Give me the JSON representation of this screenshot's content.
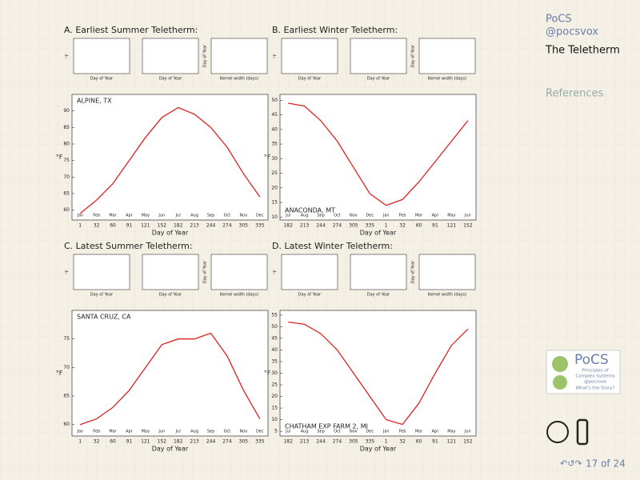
{
  "sidebar": {
    "header": "PoCS",
    "handle": "@pocsvox",
    "section": "The Teletherm",
    "references": "References",
    "page": "17 of 24",
    "logo": {
      "title": "PoCS",
      "lines": [
        "Principles of",
        "Complex Systems",
        "@pocsvox",
        "What's the Story?"
      ]
    }
  },
  "chart_data": [
    {
      "type": "line",
      "title": "A. Earliest Summer Teletherm:",
      "location": "ALPINE, TX",
      "xlabel": "Day of Year",
      "ylabel": "°F",
      "color": "#e02020",
      "categories": [
        "1",
        "32",
        "60",
        "91",
        "121",
        "152",
        "182",
        "213",
        "244",
        "274",
        "305",
        "335"
      ],
      "months": [
        "Jan",
        "Feb",
        "Mar",
        "Apr",
        "May",
        "Jun",
        "Jul",
        "Aug",
        "Sep",
        "Oct",
        "Nov",
        "Dec"
      ],
      "values": [
        59,
        63,
        68,
        75,
        82,
        88,
        91,
        89,
        85,
        79,
        71,
        64
      ],
      "ylim": [
        57,
        95
      ],
      "yticks": [
        60,
        65,
        70,
        75,
        80,
        85,
        90
      ],
      "insets": [
        {
          "xlabel": "Day of Year",
          "ylabel": "°F"
        },
        {
          "xlabel": "Day of Year"
        },
        {
          "xlabel": "Kernel width (days)",
          "ylabel": "Day of Year"
        }
      ]
    },
    {
      "type": "line",
      "title": "B. Earliest Winter Teletherm:",
      "location": "ANACONDA, MT",
      "xlabel": "Day of Year",
      "ylabel": "°F",
      "color": "#e02020",
      "categories": [
        "182",
        "213",
        "244",
        "274",
        "305",
        "335",
        "1",
        "32",
        "60",
        "91",
        "121",
        "152"
      ],
      "months": [
        "Jul",
        "Aug",
        "Sep",
        "Oct",
        "Nov",
        "Dec",
        "Jan",
        "Feb",
        "Mar",
        "Apr",
        "May",
        "Jun"
      ],
      "values": [
        49,
        48,
        43,
        36,
        27,
        18,
        14,
        16,
        22,
        29,
        36,
        43
      ],
      "ylim": [
        9,
        52
      ],
      "yticks": [
        10,
        15,
        20,
        25,
        30,
        35,
        40,
        45,
        50
      ],
      "insets": [
        {
          "xlabel": "Day of Year",
          "ylabel": "°F"
        },
        {
          "xlabel": "Day of Year"
        },
        {
          "xlabel": "Kernel width (days)",
          "ylabel": "Day of Year"
        }
      ]
    },
    {
      "type": "line",
      "title": "C. Latest Summer Teletherm:",
      "location": "SANTA CRUZ, CA",
      "xlabel": "Day of Year",
      "ylabel": "°F",
      "color": "#e02020",
      "categories": [
        "1",
        "32",
        "60",
        "91",
        "121",
        "152",
        "182",
        "213",
        "244",
        "274",
        "305",
        "335"
      ],
      "months": [
        "Jan",
        "Feb",
        "Mar",
        "Apr",
        "May",
        "Jun",
        "Jul",
        "Aug",
        "Sep",
        "Oct",
        "Nov",
        "Dec"
      ],
      "values": [
        60,
        61,
        63,
        66,
        70,
        74,
        75,
        75,
        76,
        72,
        66,
        61
      ],
      "ylim": [
        58,
        80
      ],
      "yticks": [
        60,
        65,
        70,
        75
      ],
      "insets": [
        {
          "xlabel": "Day of Year",
          "ylabel": "°F"
        },
        {
          "xlabel": "Day of Year"
        },
        {
          "xlabel": "Kernel width (days)",
          "ylabel": "Day of Year"
        }
      ]
    },
    {
      "type": "line",
      "title": "D. Latest Winter Teletherm:",
      "location": "CHATHAM EXP FARM 2, MI",
      "xlabel": "Day of Year",
      "ylabel": "°F",
      "color": "#e02020",
      "categories": [
        "182",
        "213",
        "244",
        "274",
        "305",
        "335",
        "1",
        "32",
        "60",
        "91",
        "121",
        "152"
      ],
      "months": [
        "Jul",
        "Aug",
        "Sep",
        "Oct",
        "Nov",
        "Dec",
        "Jan",
        "Feb",
        "Mar",
        "Apr",
        "May",
        "Jun"
      ],
      "values": [
        52,
        51,
        47,
        40,
        30,
        20,
        10,
        8,
        17,
        30,
        42,
        49
      ],
      "ylim": [
        3,
        57
      ],
      "yticks": [
        5,
        10,
        15,
        20,
        25,
        30,
        35,
        40,
        45,
        50,
        55
      ],
      "insets": [
        {
          "xlabel": "Day of Year",
          "ylabel": "°F"
        },
        {
          "xlabel": "Day of Year"
        },
        {
          "xlabel": "Kernel width (days)",
          "ylabel": "Day of Year"
        }
      ]
    }
  ]
}
